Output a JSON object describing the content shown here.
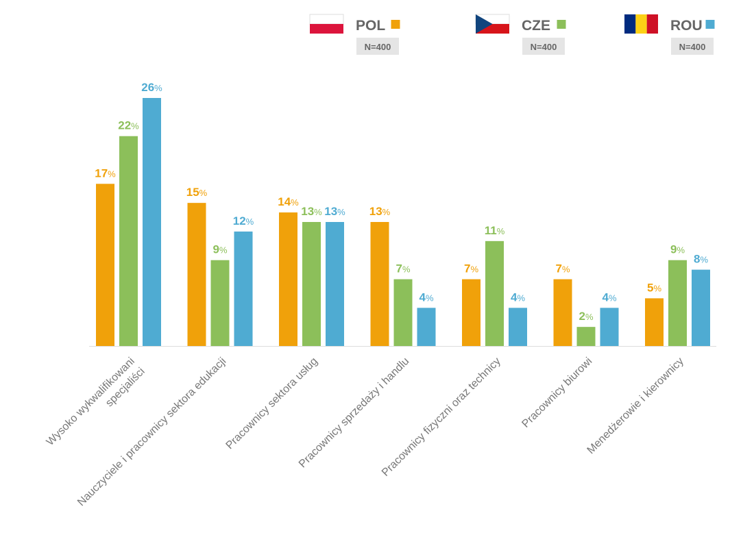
{
  "legend": [
    {
      "code": "POL",
      "n_label": "N=400",
      "color": "#F0A10A",
      "flag": "poland-flag"
    },
    {
      "code": "CZE",
      "n_label": "N=400",
      "color": "#8CBF5A",
      "flag": "czech-flag"
    },
    {
      "code": "ROU",
      "n_label": "N=400",
      "color": "#4FABD2",
      "flag": "romania-flag"
    }
  ],
  "colors": {
    "POL": "#F0A10A",
    "CZE": "#8CBF5A",
    "ROU": "#4FABD2",
    "label_gray": "#777777",
    "badge_bg": "#E5E5E5",
    "axis": "#DDDDDD",
    "flag_poland_white": "#FFFFFF",
    "flag_poland_red": "#DC143C",
    "flag_czech_blue": "#11457E",
    "flag_czech_red": "#D7141A",
    "flag_romania_blue": "#002B7F",
    "flag_romania_yellow": "#FCD116",
    "flag_romania_red": "#CE1126"
  },
  "chart_data": {
    "type": "bar",
    "categories": [
      [
        "Wysoko wykwalifikowani",
        "specjaliści"
      ],
      [
        "Nauczyciele i pracownicy sektora edukacji"
      ],
      [
        "Pracownicy sektora usług"
      ],
      [
        "Pracownicy sprzedaży i handlu"
      ],
      [
        "Pracownicy fizyczni oraz technicy"
      ],
      [
        "Pracownicy biurowi"
      ],
      [
        "Menedżerowie i kierownicy"
      ]
    ],
    "series": [
      {
        "name": "POL",
        "values": [
          17,
          15,
          14,
          13,
          7,
          7,
          5
        ]
      },
      {
        "name": "CZE",
        "values": [
          22,
          9,
          13,
          7,
          11,
          2,
          9
        ]
      },
      {
        "name": "ROU",
        "values": [
          26,
          12,
          13,
          4,
          4,
          4,
          8
        ]
      }
    ],
    "value_suffix": "%",
    "ylim": [
      0,
      26
    ],
    "grid": false
  }
}
